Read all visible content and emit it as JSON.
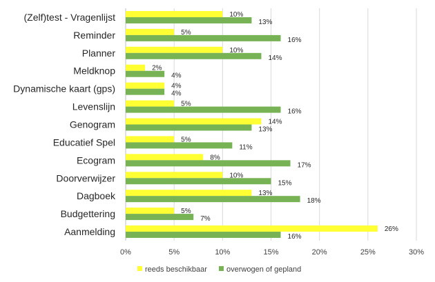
{
  "chart_data": {
    "type": "bar",
    "orientation": "horizontal",
    "title": "",
    "xlabel": "",
    "ylabel": "",
    "xlim": [
      0,
      30
    ],
    "xticks": [
      "0%",
      "5%",
      "10%",
      "15%",
      "20%",
      "25%",
      "30%"
    ],
    "grid": true,
    "legend_position": "bottom",
    "categories": [
      "(Zelf)test - Vragenlijst",
      "Reminder",
      "Planner",
      "Meldknop",
      "Dynamische kaart (gps)",
      "Levenslijn",
      "Genogram",
      "Educatief Spel",
      "Ecogram",
      "Doorverwijzer",
      "Dagboek",
      "Budgettering",
      "Aanmelding"
    ],
    "series": [
      {
        "name": "reeds beschikbaar",
        "color": "#ffff33",
        "values": [
          10,
          5,
          10,
          2,
          4,
          5,
          14,
          5,
          8,
          10,
          13,
          5,
          26
        ],
        "labels": [
          "10%",
          "5%",
          "10%",
          "2%",
          "4%",
          "5%",
          "14%",
          "5%",
          "8%",
          "10%",
          "13%",
          "5%",
          "26%"
        ]
      },
      {
        "name": "overwogen of gepland",
        "color": "#77b255",
        "values": [
          13,
          16,
          14,
          4,
          4,
          16,
          13,
          11,
          17,
          15,
          18,
          7,
          16
        ],
        "labels": [
          "13%",
          "16%",
          "14%",
          "4%",
          "4%",
          "16%",
          "13%",
          "11%",
          "17%",
          "15%",
          "18%",
          "7%",
          "16%"
        ]
      }
    ]
  },
  "colors": {
    "grid": "#d9d9d9",
    "axis": "#bfbfbf"
  }
}
